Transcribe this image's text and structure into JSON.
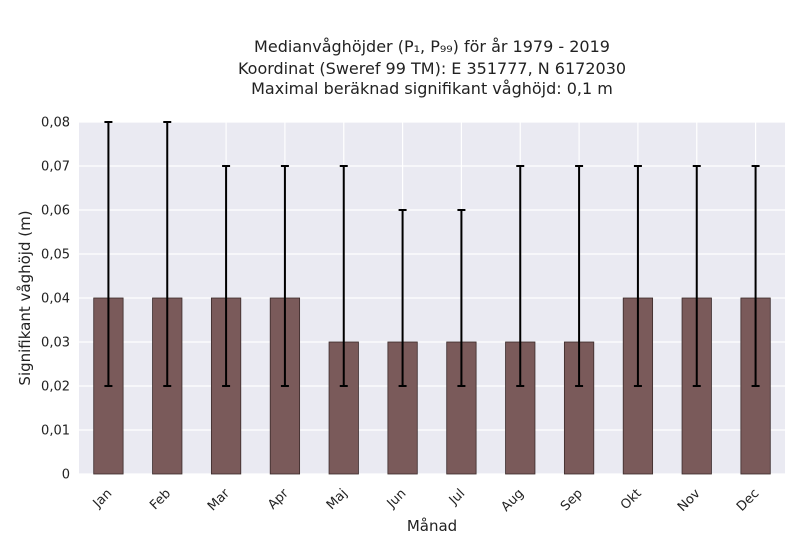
{
  "chart_data": {
    "type": "bar",
    "title": {
      "line1": "Medianvåghöjder (P₁, P₉₉) för år 1979 - 2019",
      "line2": "Koordinat (Sweref 99 TM): E 351777, N 6172030",
      "line3": "Maximal beräknad signifikant våghöjd: 0,1 m"
    },
    "xlabel": "Månad",
    "ylabel": "Signifikant våghöjd (m)",
    "ylim": [
      0,
      0.08
    ],
    "yticks": [
      0,
      0.01,
      0.02,
      0.03,
      0.04,
      0.05,
      0.06,
      0.07,
      0.08
    ],
    "ytick_labels": [
      "0",
      "0,01",
      "0,02",
      "0,03",
      "0,04",
      "0,05",
      "0,06",
      "0,07",
      "0,08"
    ],
    "categories": [
      "Jan",
      "Feb",
      "Mar",
      "Apr",
      "Maj",
      "Jun",
      "Jul",
      "Aug",
      "Sep",
      "Okt",
      "Nov",
      "Dec"
    ],
    "values": [
      0.04,
      0.04,
      0.04,
      0.04,
      0.03,
      0.03,
      0.03,
      0.03,
      0.03,
      0.04,
      0.04,
      0.04
    ],
    "p1": [
      0.02,
      0.02,
      0.02,
      0.02,
      0.02,
      0.02,
      0.02,
      0.02,
      0.02,
      0.02,
      0.02,
      0.02
    ],
    "p99": [
      0.08,
      0.08,
      0.07,
      0.07,
      0.07,
      0.06,
      0.06,
      0.07,
      0.07,
      0.07,
      0.07,
      0.07
    ],
    "grid": true,
    "colors": {
      "bar": "#7a5a5a",
      "bar_edge": "#3a2a2a",
      "plot_bg": "#eaeaf2",
      "grid": "#ffffff",
      "errorbar": "#000000"
    }
  }
}
